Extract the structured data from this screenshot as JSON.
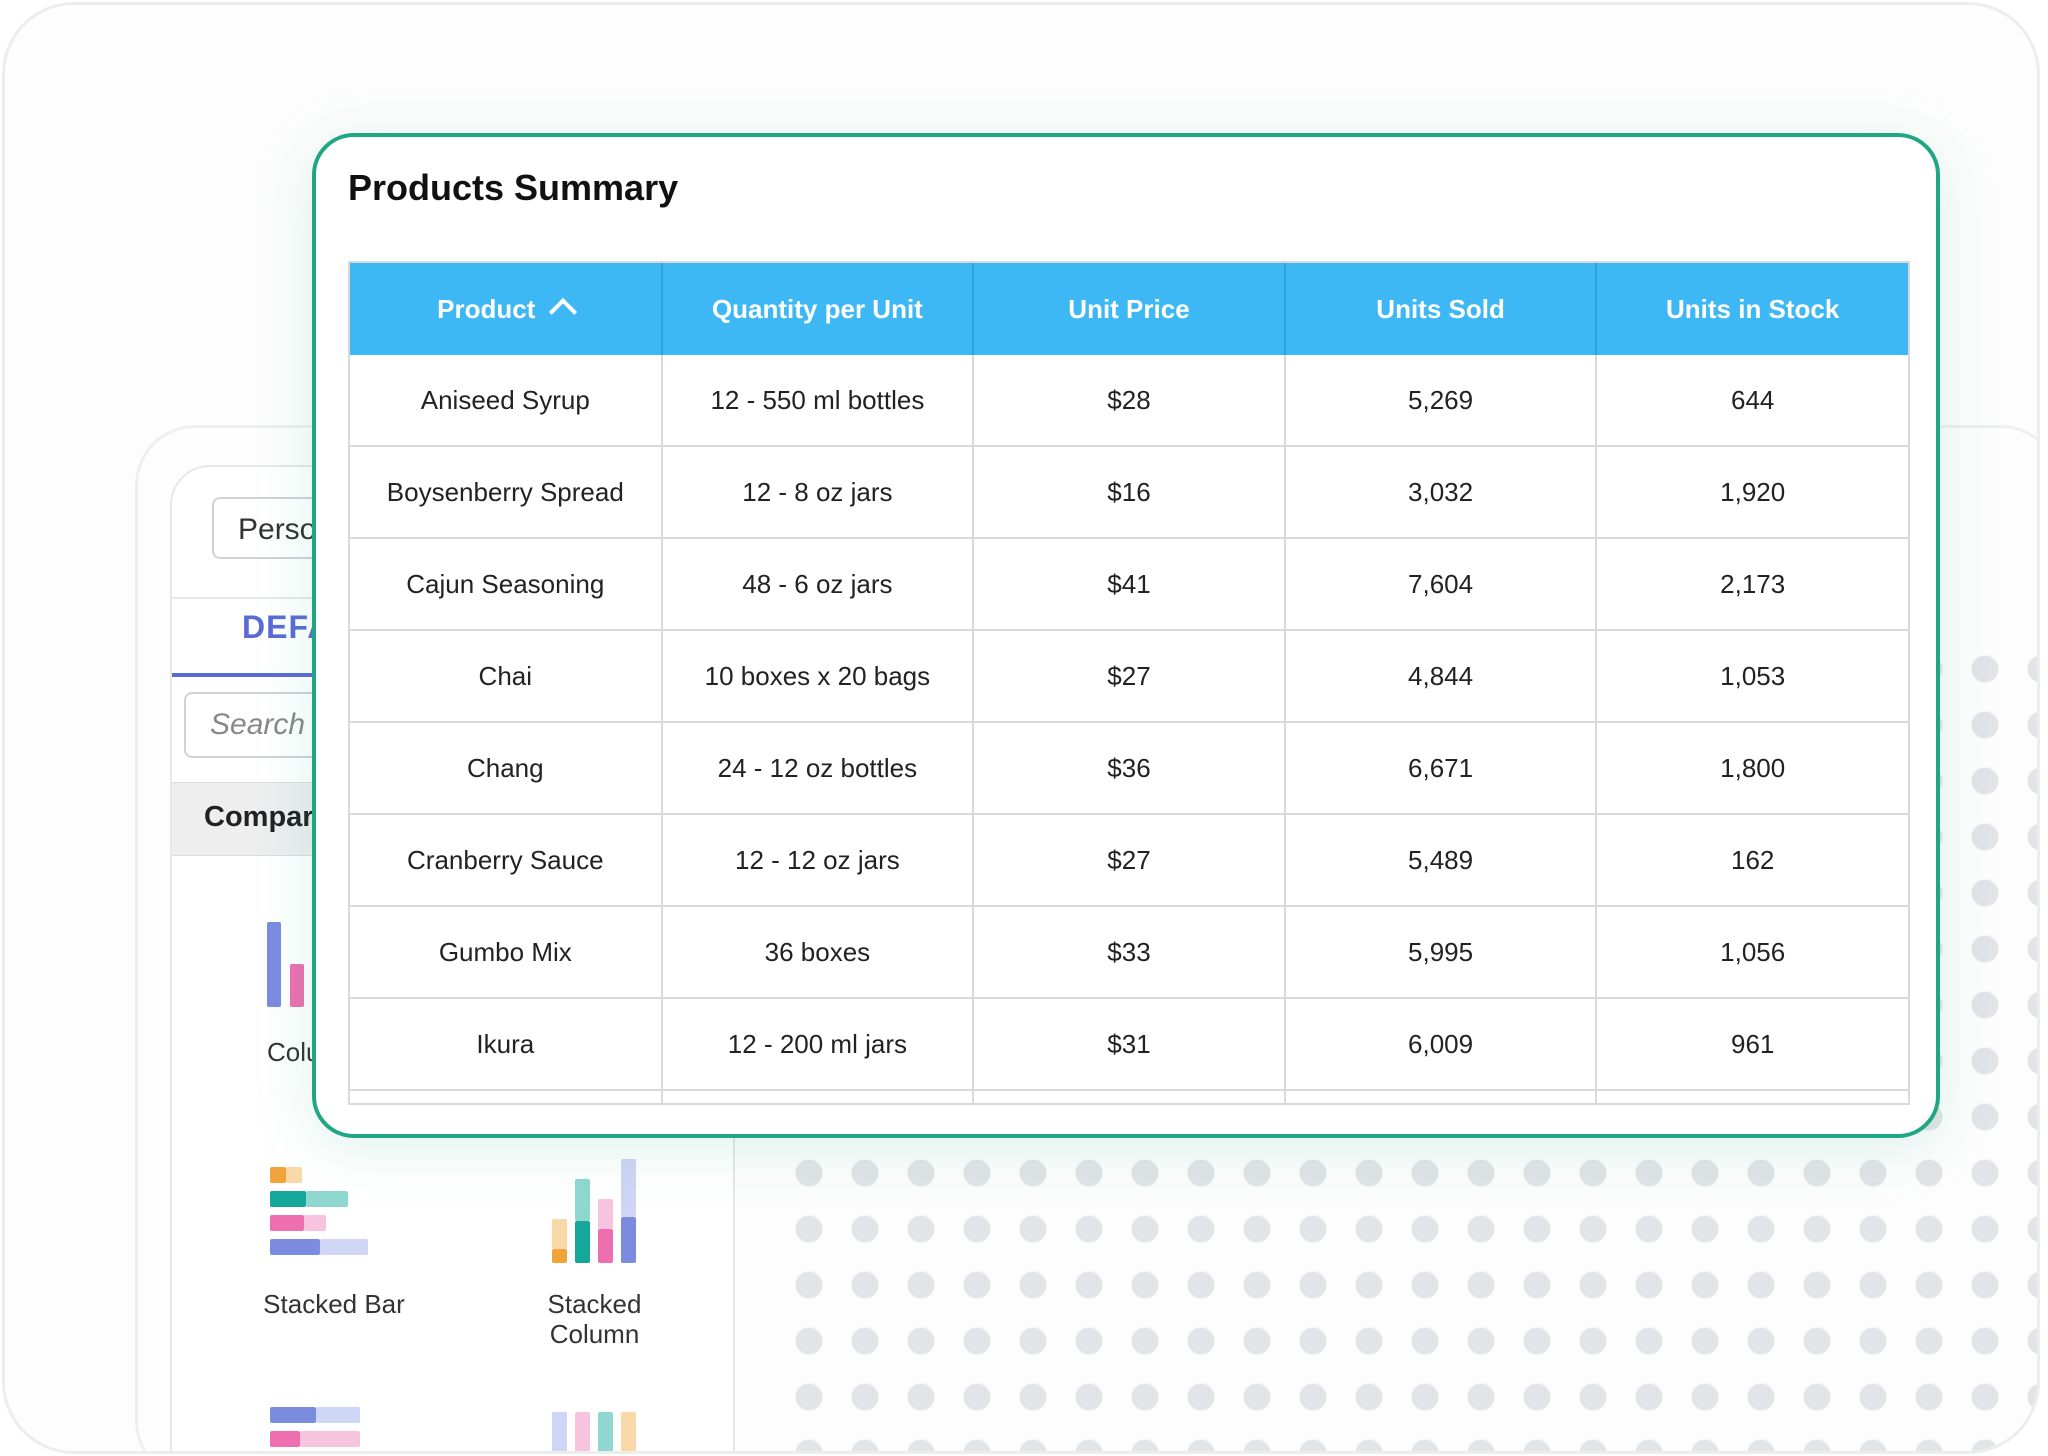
{
  "sidebar": {
    "persona_value": "Perso",
    "tab_default": "DEFA",
    "search_placeholder": "Search",
    "section_title": "Compari",
    "charts": [
      {
        "label": "Colu"
      },
      {
        "label": "Stacked Bar"
      },
      {
        "label": "Stacked\nColumn"
      }
    ]
  },
  "card": {
    "title": "Products Summary",
    "columns": [
      "Product",
      "Quantity per Unit",
      "Unit Price",
      "Units Sold",
      "Units in Stock"
    ],
    "sort": {
      "column": "Product",
      "direction": "ascending",
      "icon": "chevron-up-icon"
    },
    "rows": [
      [
        "Aniseed Syrup",
        "12 - 550 ml bottles",
        "$28",
        "5,269",
        "644"
      ],
      [
        "Boysenberry Spread",
        "12 - 8 oz jars",
        "$16",
        "3,032",
        "1,920"
      ],
      [
        "Cajun Seasoning",
        "48 - 6 oz jars",
        "$41",
        "7,604",
        "2,173"
      ],
      [
        "Chai",
        "10 boxes x 20 bags",
        "$27",
        "4,844",
        "1,053"
      ],
      [
        "Chang",
        "24 - 12 oz bottles",
        "$36",
        "6,671",
        "1,800"
      ],
      [
        "Cranberry Sauce",
        "12 - 12 oz jars",
        "$27",
        "5,489",
        "162"
      ],
      [
        "Gumbo Mix",
        "36 boxes",
        "$33",
        "5,995",
        "1,056"
      ],
      [
        "Ikura",
        "12 - 200 ml jars",
        "$31",
        "6,009",
        "961"
      ]
    ]
  },
  "colors": {
    "accent": "#1fa784",
    "header": "#3db8f5",
    "tab": "#5b6bd6"
  }
}
